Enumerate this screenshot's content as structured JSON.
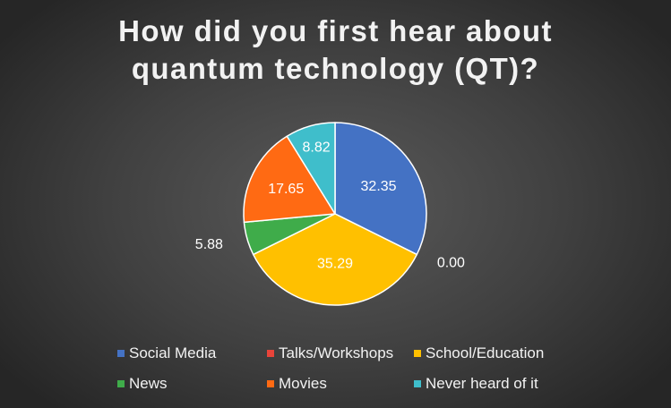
{
  "chart_data": {
    "type": "pie",
    "title_lines": [
      "How did you first hear about",
      "quantum technology (QT)?"
    ],
    "slices": [
      {
        "name": "Social Media",
        "value": 32.35,
        "label": "32.35",
        "color": "#4472c4"
      },
      {
        "name": "Talks/Workshops",
        "value": 0.0,
        "label": "0.00",
        "color": "#e8443a"
      },
      {
        "name": "School/Education",
        "value": 35.29,
        "label": "35.29",
        "color": "#ffc000"
      },
      {
        "name": "News",
        "value": 5.88,
        "label": "5.88",
        "color": "#3fac4a"
      },
      {
        "name": "Movies",
        "value": 17.65,
        "label": "17.65",
        "color": "#ff6a13"
      },
      {
        "name": "Never heard of it",
        "value": 8.82,
        "label": "8.82",
        "color": "#3fbecb"
      }
    ],
    "legend_position": "bottom"
  }
}
